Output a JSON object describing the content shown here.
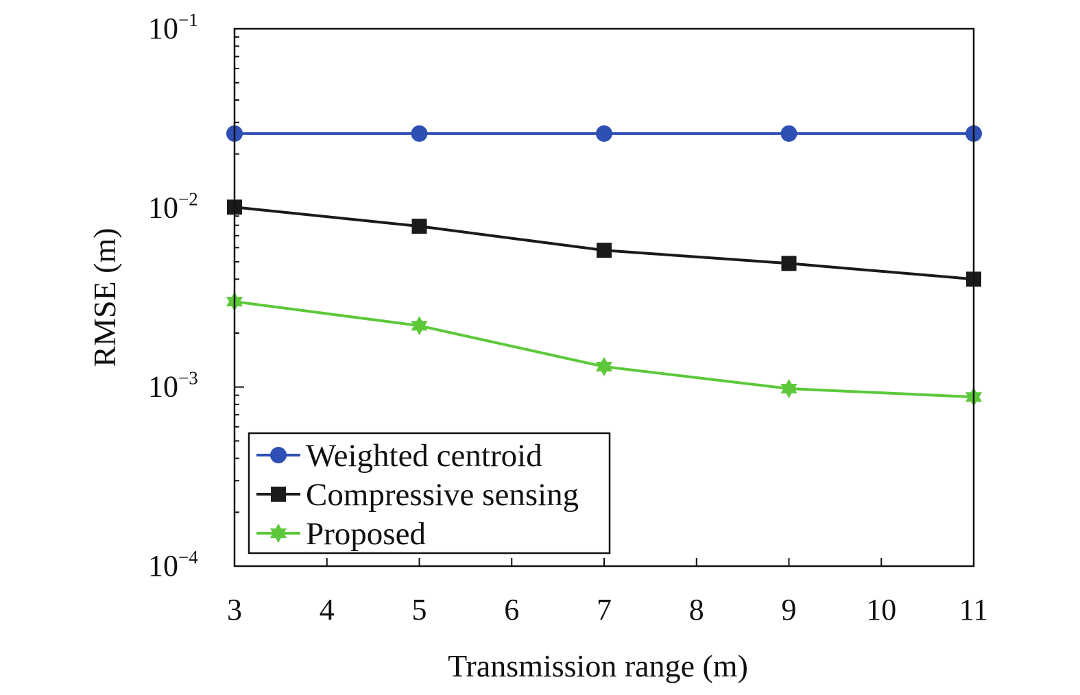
{
  "chart_data": {
    "type": "line",
    "title": "",
    "xlabel": "Transmission range (m)",
    "ylabel": "RMSE (m)",
    "xlim": [
      3,
      11
    ],
    "ylim": [
      0.0001,
      0.1
    ],
    "yscale": "log",
    "grid": false,
    "legend_position": "bottom-left",
    "x_ticks": [
      {
        "value": 3,
        "label": "3"
      },
      {
        "value": 4,
        "label": "4"
      },
      {
        "value": 5,
        "label": "5"
      },
      {
        "value": 6,
        "label": "6"
      },
      {
        "value": 7,
        "label": "7"
      },
      {
        "value": 8,
        "label": "8"
      },
      {
        "value": 9,
        "label": "9"
      },
      {
        "value": 10,
        "label": "10"
      },
      {
        "value": 11,
        "label": "11"
      }
    ],
    "y_ticks": [
      {
        "value": 0.0001,
        "base": "10",
        "exp": "−4"
      },
      {
        "value": 0.001,
        "base": "10",
        "exp": "−3"
      },
      {
        "value": 0.01,
        "base": "10",
        "exp": "−2"
      },
      {
        "value": 0.1,
        "base": "10",
        "exp": "−1"
      }
    ],
    "x": [
      3,
      5,
      7,
      9,
      11
    ],
    "series": [
      {
        "name": "Weighted centroid",
        "color": "#2e4fb3",
        "marker": "circle",
        "values": [
          0.026,
          0.026,
          0.026,
          0.026,
          0.026
        ]
      },
      {
        "name": "Compressive sensing",
        "color": "#1a1a1a",
        "marker": "square",
        "values": [
          0.0101,
          0.0079,
          0.0058,
          0.0049,
          0.004
        ]
      },
      {
        "name": "Proposed",
        "color": "#5cc83a",
        "marker": "star",
        "values": [
          0.003,
          0.0022,
          0.0013,
          0.00098,
          0.00088
        ]
      }
    ]
  }
}
